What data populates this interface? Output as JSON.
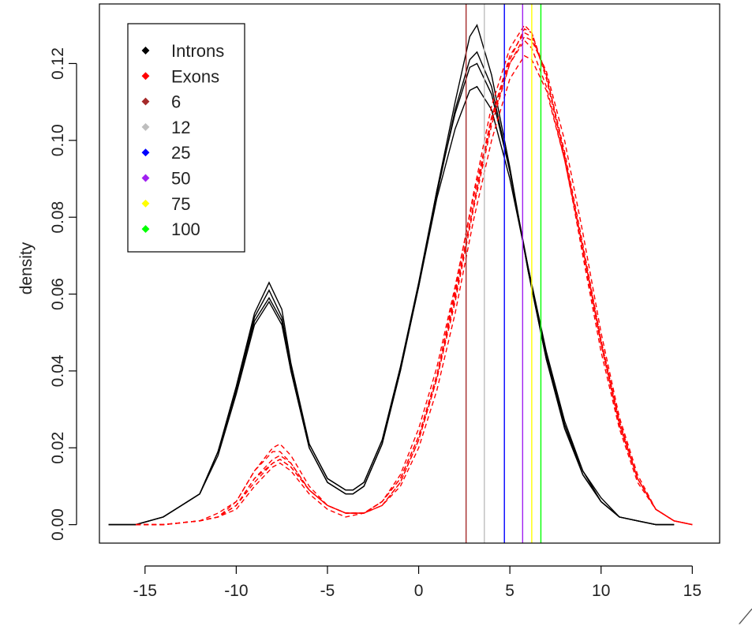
{
  "chart_data": {
    "type": "line",
    "title": "",
    "xlabel": "",
    "ylabel": "density",
    "xlim": [
      -17.5,
      16.5
    ],
    "ylim": [
      -0.0048,
      0.1355
    ],
    "x_ticks": [
      -15,
      -10,
      -5,
      0,
      5,
      10,
      15
    ],
    "y_ticks": [
      0.0,
      0.02,
      0.04,
      0.06,
      0.08,
      0.1,
      0.12
    ],
    "y_tick_labels": [
      "0.00",
      "0.02",
      "0.04",
      "0.06",
      "0.08",
      "0.10",
      "0.12"
    ],
    "grid": false,
    "legend_position": "top-left",
    "corner_glyph": "⟋",
    "legend": [
      {
        "label": "Introns",
        "color": "#000000"
      },
      {
        "label": "Exons",
        "color": "#ff0000"
      },
      {
        "label": "6",
        "color": "#a52a2a"
      },
      {
        "label": "12",
        "color": "#bebebe"
      },
      {
        "label": "25",
        "color": "#0000ff"
      },
      {
        "label": "50",
        "color": "#a020f0"
      },
      {
        "label": "75",
        "color": "#ffff00"
      },
      {
        "label": "100",
        "color": "#00ff00"
      }
    ],
    "vlines": [
      {
        "x": 2.6,
        "color": "#a52a2a",
        "label": "6"
      },
      {
        "x": 3.6,
        "color": "#bebebe",
        "label": "12"
      },
      {
        "x": 4.7,
        "color": "#0000ff",
        "label": "25"
      },
      {
        "x": 5.7,
        "color": "#a020f0",
        "label": "50"
      },
      {
        "x": 6.2,
        "color": "#ffff00",
        "label": "75"
      },
      {
        "x": 6.7,
        "color": "#00ff00",
        "label": "100"
      }
    ],
    "series": [
      {
        "group": "Introns",
        "color": "#000000",
        "dash": "",
        "x": [
          -17,
          -15.5,
          -14,
          -13,
          -12,
          -11,
          -10,
          -9,
          -8.2,
          -7.5,
          -7,
          -6,
          -5,
          -4,
          -3.6,
          -3,
          -2,
          -1,
          0,
          1,
          2,
          2.8,
          3.2,
          4,
          5,
          6,
          7,
          8,
          9,
          10,
          11,
          12,
          13,
          14
        ],
        "y": [
          0,
          0,
          0.002,
          0.005,
          0.008,
          0.018,
          0.034,
          0.052,
          0.058,
          0.052,
          0.04,
          0.02,
          0.011,
          0.008,
          0.008,
          0.01,
          0.021,
          0.04,
          0.062,
          0.087,
          0.11,
          0.127,
          0.13,
          0.117,
          0.093,
          0.066,
          0.043,
          0.025,
          0.013,
          0.006,
          0.002,
          0.001,
          0,
          0
        ]
      },
      {
        "group": "Introns",
        "color": "#000000",
        "dash": "",
        "x": [
          -17,
          -15.5,
          -14,
          -13,
          -12,
          -11,
          -10,
          -9,
          -8.2,
          -7.5,
          -7,
          -6,
          -5,
          -4,
          -3.6,
          -3,
          -2,
          -1,
          0,
          1,
          2,
          2.8,
          3.2,
          4,
          5,
          6,
          7,
          8,
          9,
          10,
          11,
          12,
          13,
          14
        ],
        "y": [
          0,
          0,
          0.002,
          0.005,
          0.008,
          0.019,
          0.035,
          0.054,
          0.061,
          0.054,
          0.041,
          0.021,
          0.012,
          0.009,
          0.009,
          0.011,
          0.022,
          0.041,
          0.063,
          0.087,
          0.107,
          0.119,
          0.12,
          0.112,
          0.092,
          0.067,
          0.044,
          0.026,
          0.014,
          0.006,
          0.002,
          0.001,
          0,
          0
        ]
      },
      {
        "group": "Introns",
        "color": "#000000",
        "dash": "",
        "x": [
          -17,
          -15.5,
          -14,
          -13,
          -12,
          -11,
          -10,
          -9,
          -8.2,
          -7.5,
          -7,
          -6,
          -5,
          -4,
          -3.6,
          -3,
          -2,
          -1,
          0,
          1,
          2,
          2.8,
          3.2,
          4,
          5,
          6,
          7,
          8,
          9,
          10,
          11,
          12,
          13,
          14
        ],
        "y": [
          0,
          0,
          0.002,
          0.005,
          0.008,
          0.019,
          0.036,
          0.055,
          0.063,
          0.056,
          0.042,
          0.021,
          0.012,
          0.009,
          0.009,
          0.011,
          0.022,
          0.041,
          0.062,
          0.085,
          0.103,
          0.113,
          0.114,
          0.108,
          0.09,
          0.067,
          0.045,
          0.027,
          0.014,
          0.007,
          0.002,
          0.001,
          0,
          0
        ]
      },
      {
        "group": "Introns",
        "color": "#000000",
        "dash": "",
        "x": [
          -17,
          -15.5,
          -14,
          -13,
          -12,
          -11,
          -10,
          -9,
          -8.2,
          -7.5,
          -7,
          -6,
          -5,
          -4,
          -3.6,
          -3,
          -2,
          -1,
          0,
          1,
          2,
          2.8,
          3.2,
          4,
          5,
          6,
          7,
          8,
          9,
          10,
          11,
          12,
          13,
          14
        ],
        "y": [
          0,
          0,
          0.002,
          0.005,
          0.008,
          0.019,
          0.035,
          0.053,
          0.059,
          0.053,
          0.04,
          0.02,
          0.011,
          0.008,
          0.008,
          0.01,
          0.021,
          0.04,
          0.062,
          0.086,
          0.108,
          0.121,
          0.123,
          0.114,
          0.092,
          0.066,
          0.043,
          0.026,
          0.013,
          0.006,
          0.002,
          0.001,
          0,
          0
        ]
      },
      {
        "group": "Exons",
        "color": "#ff0000",
        "dash": "6 4",
        "x": [
          -15.5,
          -14,
          -12,
          -11,
          -10,
          -9,
          -8,
          -7.6,
          -7,
          -6,
          -5,
          -4,
          -3,
          -2,
          -1,
          0,
          1,
          2,
          3,
          4,
          5,
          5.8,
          6.2,
          7,
          8,
          9,
          10,
          11,
          12,
          13,
          14,
          15
        ],
        "y": [
          0,
          0,
          0.001,
          0.002,
          0.005,
          0.012,
          0.017,
          0.018,
          0.016,
          0.009,
          0.005,
          0.003,
          0.003,
          0.005,
          0.011,
          0.022,
          0.038,
          0.059,
          0.083,
          0.106,
          0.122,
          0.128,
          0.127,
          0.117,
          0.097,
          0.073,
          0.048,
          0.027,
          0.012,
          0.004,
          0.001,
          0
        ]
      },
      {
        "group": "Exons",
        "color": "#ff0000",
        "dash": "6 4",
        "x": [
          -15.5,
          -14,
          -12,
          -11,
          -10,
          -9,
          -8,
          -7.6,
          -7,
          -6,
          -5,
          -4,
          -3,
          -2,
          -1,
          0,
          1,
          2,
          3,
          4,
          5,
          5.8,
          6.2,
          7,
          8,
          9,
          10,
          11,
          12,
          13,
          14,
          15
        ],
        "y": [
          0,
          0,
          0.001,
          0.002,
          0.006,
          0.014,
          0.02,
          0.021,
          0.018,
          0.01,
          0.005,
          0.003,
          0.003,
          0.006,
          0.012,
          0.023,
          0.039,
          0.06,
          0.083,
          0.105,
          0.12,
          0.126,
          0.124,
          0.114,
          0.095,
          0.071,
          0.047,
          0.026,
          0.012,
          0.004,
          0.001,
          0
        ]
      },
      {
        "group": "Exons",
        "color": "#ff0000",
        "dash": "6 4",
        "x": [
          -15.5,
          -14,
          -12,
          -11,
          -10,
          -9,
          -8,
          -7.6,
          -7,
          -6,
          -5,
          -4,
          -3,
          -2,
          -1,
          0,
          1,
          2,
          3,
          4,
          5,
          5.8,
          6.2,
          7,
          8,
          9,
          10,
          11,
          12,
          13,
          14,
          15
        ],
        "y": [
          0,
          0,
          0.001,
          0.002,
          0.004,
          0.01,
          0.015,
          0.016,
          0.014,
          0.008,
          0.004,
          0.002,
          0.003,
          0.006,
          0.012,
          0.023,
          0.039,
          0.061,
          0.086,
          0.109,
          0.124,
          0.13,
          0.128,
          0.116,
          0.096,
          0.072,
          0.047,
          0.026,
          0.012,
          0.004,
          0.001,
          0
        ]
      },
      {
        "group": "Exons",
        "color": "#ff0000",
        "dash": "6 4",
        "x": [
          -15.5,
          -14,
          -12,
          -11,
          -10,
          -9,
          -8,
          -7.6,
          -7,
          -6,
          -5,
          -4,
          -3,
          -2,
          -1,
          0,
          1,
          2,
          3,
          4,
          5,
          5.8,
          6.2,
          7,
          8,
          9,
          10,
          11,
          12,
          13,
          14,
          15
        ],
        "y": [
          0,
          0,
          0.001,
          0.002,
          0.005,
          0.011,
          0.016,
          0.017,
          0.015,
          0.009,
          0.005,
          0.003,
          0.003,
          0.005,
          0.011,
          0.022,
          0.038,
          0.058,
          0.082,
          0.104,
          0.12,
          0.127,
          0.126,
          0.118,
          0.1,
          0.076,
          0.05,
          0.028,
          0.013,
          0.004,
          0.001,
          0
        ]
      },
      {
        "group": "Exons",
        "color": "#ff0000",
        "dash": "6 4",
        "x": [
          -15.5,
          -14,
          -12,
          -11,
          -10,
          -9,
          -8,
          -7.6,
          -7,
          -6,
          -5,
          -4,
          -3,
          -2,
          -1,
          0,
          1,
          2,
          3,
          4,
          5,
          5.8,
          6.2,
          7,
          8,
          9,
          10,
          11,
          12,
          13,
          14,
          15
        ],
        "y": [
          0,
          0,
          0.001,
          0.003,
          0.006,
          0.014,
          0.019,
          0.019,
          0.016,
          0.009,
          0.005,
          0.003,
          0.003,
          0.005,
          0.01,
          0.02,
          0.035,
          0.055,
          0.079,
          0.1,
          0.116,
          0.122,
          0.121,
          0.113,
          0.095,
          0.072,
          0.048,
          0.027,
          0.012,
          0.004,
          0.001,
          0
        ]
      },
      {
        "group": "Exons",
        "color": "#ff0000",
        "dash": "6 4",
        "x": [
          -15.5,
          -14,
          -12,
          -11,
          -10,
          -9,
          -8,
          -7.6,
          -7,
          -6,
          -5,
          -4,
          -3,
          -2,
          -1,
          0,
          1,
          2,
          3,
          4,
          5,
          5.8,
          6.2,
          7,
          8,
          9,
          10,
          11,
          12,
          13,
          14,
          15
        ],
        "y": [
          0,
          0,
          0.001,
          0.002,
          0.005,
          0.012,
          0.016,
          0.017,
          0.015,
          0.009,
          0.005,
          0.003,
          0.003,
          0.006,
          0.013,
          0.025,
          0.041,
          0.062,
          0.085,
          0.106,
          0.121,
          0.129,
          0.128,
          0.117,
          0.096,
          0.07,
          0.045,
          0.025,
          0.011,
          0.004,
          0.001,
          0
        ]
      }
    ]
  }
}
